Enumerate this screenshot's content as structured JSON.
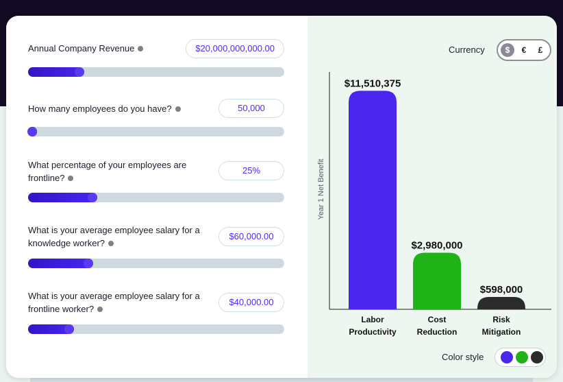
{
  "inputs": [
    {
      "label": "Annual Company Revenue",
      "value": "$20,000,000,000.00",
      "slider_fraction": 0.22
    },
    {
      "label": "How many employees do you have?",
      "value": "50,000",
      "slider_fraction": 0.035
    },
    {
      "label": "What percentage of your employees are frontline?",
      "value": "25%",
      "slider_fraction": 0.27
    },
    {
      "label": "What is your average employee salary for a knowledge worker?",
      "value": "$60,000.00",
      "slider_fraction": 0.255
    },
    {
      "label": "What is your average employee salary for a frontline worker?",
      "value": "$40,000.00",
      "slider_fraction": 0.18
    }
  ],
  "currency": {
    "label": "Currency",
    "options": [
      {
        "symbol": "$",
        "active": true
      },
      {
        "symbol": "€",
        "active": false
      },
      {
        "symbol": "£",
        "active": false
      }
    ]
  },
  "color_style": {
    "label": "Color style",
    "swatches": [
      "#4a26ef",
      "#1fb317",
      "#2b2b2b"
    ]
  },
  "chart_data": {
    "type": "bar",
    "ylabel": "Year 1 Net Benefit",
    "xlabel": "",
    "title": "",
    "ylim": [
      0,
      12500000
    ],
    "categories": [
      [
        "Labor",
        "Productivity"
      ],
      [
        "Cost",
        "Reduction"
      ],
      [
        "Risk",
        "Mitigation"
      ]
    ],
    "values": [
      11510375,
      2980000,
      598000
    ],
    "value_labels": [
      "$11,510,375",
      "$2,980,000",
      "$598,000"
    ],
    "colors": [
      "#4a26ef",
      "#1fb317",
      "#2b2b2b"
    ]
  }
}
